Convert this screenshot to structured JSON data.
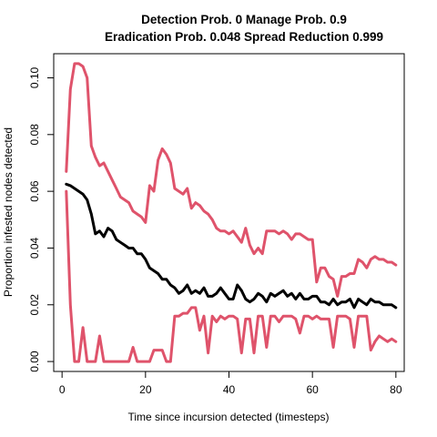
{
  "chart_data": {
    "type": "line",
    "title_line1": "Detection Prob. 0 Manage Prob. 0.9",
    "title_line2": "Eradication Prob. 0.048 Spread Reduction 0.999",
    "xlabel": "Time since incursion detected (timesteps)",
    "ylabel": "Proportion infested nodes detected",
    "xlim": [
      -2,
      82
    ],
    "ylim": [
      -0.0035,
      0.1085
    ],
    "xticks": [
      0,
      20,
      40,
      60,
      80
    ],
    "yticks": [
      0.0,
      0.02,
      0.04,
      0.06,
      0.08,
      0.1
    ],
    "xtick_labels": [
      "0",
      "20",
      "40",
      "60",
      "80"
    ],
    "ytick_labels": [
      "0.00",
      "0.02",
      "0.04",
      "0.06",
      "0.08",
      "0.10"
    ],
    "grid": false,
    "legend": "none",
    "series": [
      {
        "role": "upper",
        "color": "#DF536B",
        "x": [
          1,
          2,
          3,
          4,
          5,
          6,
          7,
          8,
          9,
          10,
          11,
          12,
          13,
          14,
          15,
          16,
          17,
          18,
          19,
          20,
          21,
          22,
          23,
          24,
          25,
          26,
          27,
          28,
          29,
          30,
          31,
          32,
          33,
          34,
          35,
          36,
          37,
          38,
          39,
          40,
          41,
          42,
          43,
          44,
          45,
          46,
          47,
          48,
          49,
          50,
          51,
          52,
          53,
          54,
          55,
          56,
          57,
          58,
          59,
          60,
          61,
          62,
          63,
          64,
          65,
          66,
          67,
          68,
          69,
          70,
          71,
          72,
          73,
          74,
          75,
          76,
          77,
          78,
          79,
          80
        ],
        "y": [
          0.067,
          0.096,
          0.105,
          0.105,
          0.104,
          0.1,
          0.076,
          0.072,
          0.069,
          0.07,
          0.067,
          0.064,
          0.061,
          0.058,
          0.057,
          0.056,
          0.053,
          0.052,
          0.051,
          0.049,
          0.062,
          0.06,
          0.071,
          0.075,
          0.073,
          0.07,
          0.061,
          0.06,
          0.059,
          0.061,
          0.054,
          0.056,
          0.055,
          0.053,
          0.052,
          0.05,
          0.047,
          0.046,
          0.046,
          0.045,
          0.046,
          0.044,
          0.042,
          0.047,
          0.041,
          0.038,
          0.04,
          0.038,
          0.046,
          0.046,
          0.046,
          0.045,
          0.046,
          0.045,
          0.043,
          0.045,
          0.045,
          0.044,
          0.043,
          0.043,
          0.028,
          0.033,
          0.033,
          0.03,
          0.029,
          0.023,
          0.03,
          0.03,
          0.031,
          0.031,
          0.036,
          0.035,
          0.033,
          0.036,
          0.037,
          0.036,
          0.036,
          0.035,
          0.035,
          0.034
        ]
      },
      {
        "role": "mean",
        "color": "#000000",
        "x": [
          1,
          2,
          3,
          4,
          5,
          6,
          7,
          8,
          9,
          10,
          11,
          12,
          13,
          14,
          15,
          16,
          17,
          18,
          19,
          20,
          21,
          22,
          23,
          24,
          25,
          26,
          27,
          28,
          29,
          30,
          31,
          32,
          33,
          34,
          35,
          36,
          37,
          38,
          39,
          40,
          41,
          42,
          43,
          44,
          45,
          46,
          47,
          48,
          49,
          50,
          51,
          52,
          53,
          54,
          55,
          56,
          57,
          58,
          59,
          60,
          61,
          62,
          63,
          64,
          65,
          66,
          67,
          68,
          69,
          70,
          71,
          72,
          73,
          74,
          75,
          76,
          77,
          78,
          79,
          80
        ],
        "y": [
          0.0625,
          0.062,
          0.061,
          0.06,
          0.059,
          0.057,
          0.052,
          0.045,
          0.046,
          0.044,
          0.047,
          0.046,
          0.043,
          0.042,
          0.041,
          0.04,
          0.04,
          0.038,
          0.038,
          0.036,
          0.033,
          0.032,
          0.031,
          0.029,
          0.029,
          0.027,
          0.026,
          0.024,
          0.025,
          0.027,
          0.024,
          0.025,
          0.024,
          0.026,
          0.023,
          0.023,
          0.024,
          0.026,
          0.024,
          0.022,
          0.022,
          0.027,
          0.025,
          0.022,
          0.021,
          0.022,
          0.024,
          0.023,
          0.021,
          0.024,
          0.023,
          0.024,
          0.025,
          0.023,
          0.024,
          0.022,
          0.024,
          0.022,
          0.022,
          0.023,
          0.023,
          0.021,
          0.021,
          0.02,
          0.022,
          0.02,
          0.021,
          0.021,
          0.022,
          0.019,
          0.022,
          0.021,
          0.02,
          0.022,
          0.021,
          0.021,
          0.02,
          0.02,
          0.02,
          0.019
        ]
      },
      {
        "role": "lower",
        "color": "#DF536B",
        "x": [
          1,
          2,
          3,
          4,
          5,
          6,
          7,
          8,
          9,
          10,
          11,
          12,
          13,
          14,
          15,
          16,
          17,
          18,
          19,
          20,
          21,
          22,
          23,
          24,
          25,
          26,
          27,
          28,
          29,
          30,
          31,
          32,
          33,
          34,
          35,
          36,
          37,
          38,
          39,
          40,
          41,
          42,
          43,
          44,
          45,
          46,
          47,
          48,
          49,
          50,
          51,
          52,
          53,
          54,
          55,
          56,
          57,
          58,
          59,
          60,
          61,
          62,
          63,
          64,
          65,
          66,
          67,
          68,
          69,
          70,
          71,
          72,
          73,
          74,
          75,
          76,
          77,
          78,
          79,
          80
        ],
        "y": [
          0.06,
          0.02,
          0.0,
          0.0,
          0.012,
          0.0,
          0.0,
          0.0,
          0.009,
          0.0,
          0.0,
          0.0,
          0.0,
          0.0,
          0.0,
          0.0,
          0.005,
          0.0,
          0.0,
          0.0,
          0.0,
          0.004,
          0.004,
          0.004,
          0.0,
          0.0,
          0.016,
          0.016,
          0.017,
          0.017,
          0.019,
          0.019,
          0.011,
          0.016,
          0.003,
          0.016,
          0.014,
          0.016,
          0.015,
          0.016,
          0.016,
          0.015,
          0.003,
          0.015,
          0.015,
          0.003,
          0.016,
          0.016,
          0.005,
          0.016,
          0.016,
          0.014,
          0.016,
          0.016,
          0.016,
          0.015,
          0.01,
          0.016,
          0.016,
          0.015,
          0.016,
          0.015,
          0.015,
          0.015,
          0.005,
          0.016,
          0.016,
          0.016,
          0.015,
          0.005,
          0.016,
          0.016,
          0.016,
          0.004,
          0.007,
          0.009,
          0.008,
          0.007,
          0.008,
          0.007
        ]
      }
    ]
  }
}
